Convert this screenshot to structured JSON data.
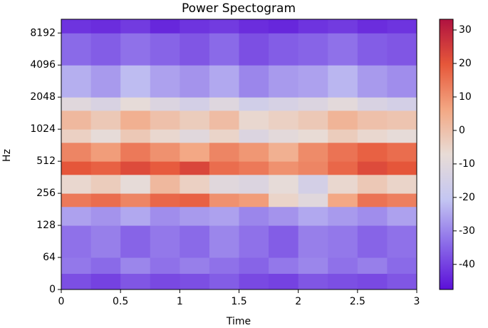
{
  "chart_data": {
    "type": "heatmap",
    "title": "Power Spectogram",
    "x_label": "Time",
    "y_label": "Hz",
    "x_edges": [
      0,
      0.25,
      0.5,
      0.75,
      1,
      1.25,
      1.5,
      1.75,
      2,
      2.25,
      2.5,
      2.75,
      3
    ],
    "y_edges": [
      0,
      32,
      64,
      128,
      192,
      256,
      384,
      512,
      768,
      1024,
      1536,
      2048,
      4096,
      8192,
      11025
    ],
    "z": [
      [
        -38,
        -40,
        -37,
        -39,
        -38,
        -36,
        -39,
        -40,
        -37,
        -38,
        -39,
        -37
      ],
      [
        -32,
        -34,
        -30,
        -33,
        -31,
        -33,
        -35,
        -32,
        -30,
        -33,
        -31,
        -34
      ],
      [
        -33,
        -31,
        -35,
        -32,
        -34,
        -30,
        -33,
        -36,
        -31,
        -32,
        -35,
        -33
      ],
      [
        -26,
        -28,
        -25,
        -29,
        -27,
        -26,
        -30,
        -28,
        -25,
        -27,
        -29,
        -26
      ],
      [
        14,
        16,
        12,
        17,
        18,
        10,
        8,
        -5,
        -10,
        6,
        15,
        13
      ],
      [
        -6,
        -3,
        -8,
        2,
        -4,
        -10,
        -12,
        -8,
        -15,
        -6,
        -2,
        -5
      ],
      [
        20,
        18,
        22,
        19,
        23,
        16,
        14,
        10,
        12,
        17,
        22,
        20
      ],
      [
        12,
        8,
        14,
        10,
        6,
        12,
        9,
        4,
        11,
        15,
        18,
        16
      ],
      [
        -4,
        -8,
        -2,
        -6,
        -10,
        -5,
        -12,
        -9,
        -7,
        -3,
        -6,
        -8
      ],
      [
        2,
        -2,
        4,
        0,
        -3,
        1,
        -6,
        -4,
        -2,
        3,
        0,
        -1
      ],
      [
        -10,
        -13,
        -8,
        -12,
        -15,
        -11,
        -16,
        -14,
        -12,
        -9,
        -13,
        -15
      ],
      [
        -24,
        -27,
        -22,
        -26,
        -28,
        -25,
        -30,
        -27,
        -26,
        -23,
        -27,
        -29
      ],
      [
        -34,
        -36,
        -33,
        -35,
        -37,
        -34,
        -38,
        -36,
        -35,
        -33,
        -36,
        -37
      ],
      [
        -42,
        -43,
        -41,
        -44,
        -42,
        -41,
        -43,
        -44,
        -42,
        -41,
        -43,
        -42
      ]
    ],
    "xlim": [
      0,
      3
    ],
    "xticks": [
      0,
      0.5,
      1,
      1.5,
      2,
      2.5,
      3
    ],
    "ylim": [
      0,
      11025
    ],
    "yticks": [
      0,
      64,
      128,
      256,
      512,
      1024,
      2048,
      4096,
      8192
    ],
    "yscale": "symlog",
    "linthresh": 64,
    "clim": [
      -47.5,
      33.2
    ],
    "cticks": [
      -40,
      -30,
      -20,
      -10,
      0,
      10,
      20,
      30
    ],
    "colormap": [
      "#5b0fd8",
      "#8a6ae8",
      "#c4c6f2",
      "#e8dcd6",
      "#f3a783",
      "#e6573a",
      "#b01240"
    ]
  }
}
